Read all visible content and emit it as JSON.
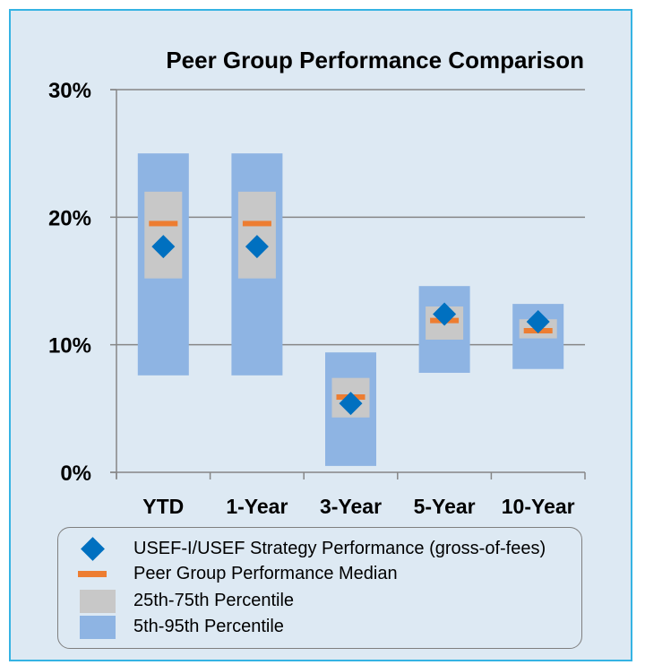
{
  "chart_data": {
    "type": "box",
    "title": "Peer Group Performance Comparison",
    "categories": [
      "YTD",
      "1-Year",
      "3-Year",
      "5-Year",
      "10-Year"
    ],
    "yticks": [
      "0%",
      "10%",
      "20%",
      "30%"
    ],
    "ylim": [
      0,
      30
    ],
    "grid": true,
    "series": [
      {
        "name": "USEF-I/USEF Strategy Performance (gross-of-fees)",
        "marker": "diamond",
        "values": [
          17.7,
          17.7,
          5.4,
          12.4,
          11.8
        ]
      },
      {
        "name": "Peer Group Performance Median",
        "marker": "dash",
        "values": [
          19.5,
          19.5,
          5.9,
          11.9,
          11.1
        ]
      },
      {
        "name": "25th-75th Percentile",
        "marker": "box",
        "low": [
          15.2,
          15.2,
          4.3,
          10.4,
          10.5
        ],
        "high": [
          22.0,
          22.0,
          7.4,
          13.0,
          12.0
        ]
      },
      {
        "name": "5th-95th Percentile",
        "marker": "box",
        "low": [
          7.6,
          7.6,
          0.5,
          7.8,
          8.1
        ],
        "high": [
          25.0,
          25.0,
          9.4,
          14.6,
          13.2
        ]
      }
    ],
    "colors": {
      "strategy": "#0070c0",
      "median": "#ed7d31",
      "p25_75": "#c8c8c8",
      "p5_95": "#8eb4e3",
      "gridline": "#868686",
      "frame_border": "#35b3e3",
      "background": "#dde9f3"
    }
  }
}
